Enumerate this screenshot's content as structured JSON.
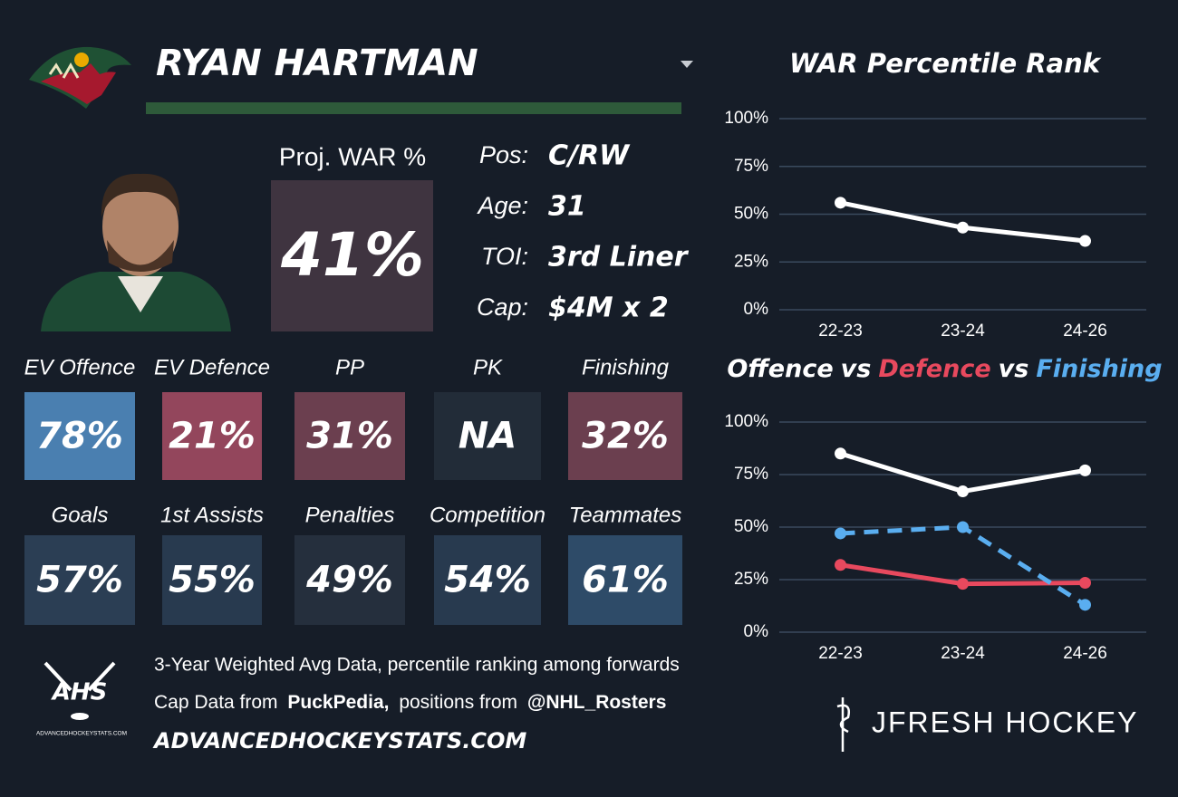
{
  "header": {
    "name": "RYAN HARTMAN"
  },
  "summary": {
    "label": "Proj. WAR %",
    "value": "41%"
  },
  "info": [
    {
      "label": "Pos:",
      "value": "C/RW"
    },
    {
      "label": "Age:",
      "value": "31"
    },
    {
      "label": "TOI:",
      "value": "3rd Liner"
    },
    {
      "label": "Cap:",
      "value": "$4M x 2"
    }
  ],
  "tiles": [
    [
      {
        "label": "EV Offence",
        "value": "78%",
        "color": "#4a7fb0"
      },
      {
        "label": "EV Defence",
        "value": "21%",
        "color": "#93465c"
      },
      {
        "label": "PP",
        "value": "31%",
        "color": "#6b3f4f"
      },
      {
        "label": "PK",
        "value": "NA",
        "color": "#222c38"
      },
      {
        "label": "Finishing",
        "value": "32%",
        "color": "#6b3f4f"
      }
    ],
    [
      {
        "label": "Goals",
        "value": "57%",
        "color": "#2b3e54"
      },
      {
        "label": "1st Assists",
        "value": "55%",
        "color": "#283a4f"
      },
      {
        "label": "Penalties",
        "value": "49%",
        "color": "#252f3d"
      },
      {
        "label": "Competition",
        "value": "54%",
        "color": "#283a4f"
      },
      {
        "label": "Teammates",
        "value": "61%",
        "color": "#2e4b68"
      }
    ]
  ],
  "footer": {
    "note": "3-Year Weighted Avg Data, percentile ranking among forwards",
    "cap_source": [
      "Cap Data from",
      "PuckPedia,",
      "positions from",
      "@NHL_Rosters"
    ],
    "site": "ADVANCEDHOCKEYSTATS.COM",
    "ahs_logo": "AHS",
    "ahs_sub": "ADVANCEDHOCKEYSTATS.COM",
    "brand": "JFRESH HOCKEY"
  },
  "chart_data": [
    {
      "type": "line",
      "title": "WAR Percentile Rank",
      "categories": [
        "22-23",
        "23-24",
        "24-26"
      ],
      "series": [
        {
          "color": "#ffffff",
          "values": [
            56,
            43,
            36
          ]
        }
      ],
      "ylim": [
        0,
        100
      ],
      "yticks": [
        {
          "value": 0,
          "label": "0%"
        },
        {
          "value": 25,
          "label": "25%"
        },
        {
          "value": 50,
          "label": "50%"
        },
        {
          "value": 75,
          "label": "75%"
        },
        {
          "value": 100,
          "label": "100%"
        }
      ],
      "grid": true
    },
    {
      "type": "line",
      "title_separator": "vs",
      "categories": [
        "22-23",
        "23-24",
        "24-26"
      ],
      "series": [
        {
          "name": "Offence",
          "color": "#ffffff",
          "values": [
            85,
            67,
            77
          ]
        },
        {
          "name": "Defence",
          "color": "#e8495e",
          "values": [
            32,
            23,
            23.5
          ]
        },
        {
          "name": "Finishing",
          "color": "#5aaef0",
          "values": [
            47,
            50,
            13
          ],
          "dashed": true
        }
      ],
      "ylim": [
        0,
        100
      ],
      "yticks": [
        {
          "value": 0,
          "label": "0%"
        },
        {
          "value": 25,
          "label": "25%"
        },
        {
          "value": 50,
          "label": "50%"
        },
        {
          "value": 75,
          "label": "75%"
        },
        {
          "value": 100,
          "label": "100%"
        }
      ],
      "grid": true
    }
  ]
}
